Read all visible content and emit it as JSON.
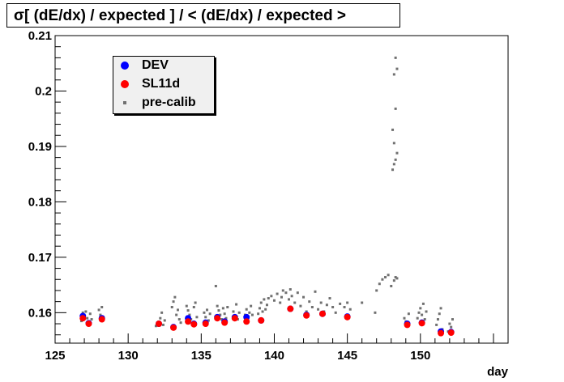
{
  "chart_data": {
    "type": "scatter",
    "title": "σ[ (dE/dx) / expected ] / < (dE/dx) / expected >",
    "xlabel": "day",
    "ylabel": "",
    "xlim": [
      125,
      156
    ],
    "ylim": [
      0.1545,
      0.21
    ],
    "x_ticks": [
      125,
      130,
      135,
      140,
      145,
      150
    ],
    "y_ticks": [
      0.16,
      0.17,
      0.18,
      0.19,
      0.2,
      0.21
    ],
    "x_tick_labels": [
      "125",
      "130",
      "135",
      "140",
      "145",
      "150"
    ],
    "y_tick_labels": [
      "0.16",
      "0.17",
      "0.18",
      "0.19",
      "0.2",
      "0.21"
    ],
    "grid": false,
    "legend_position": "top-left",
    "series": [
      {
        "name": "DEV",
        "color": "#0000ff",
        "marker": "circle",
        "x": [
          126.9,
          127.3,
          128.2,
          132.1,
          133.1,
          134.1,
          134.5,
          135.3,
          136.1,
          136.6,
          137.3,
          138.1,
          139.1,
          141.1,
          142.2,
          143.3,
          145.0,
          149.1,
          150.1,
          151.4,
          152.1
        ],
        "y": [
          0.1594,
          0.1581,
          0.159,
          0.158,
          0.1574,
          0.159,
          0.158,
          0.1582,
          0.1592,
          0.1584,
          0.1592,
          0.1592,
          0.1586,
          0.1607,
          0.1596,
          0.1598,
          0.1593,
          0.158,
          0.1582,
          0.1566,
          0.1565
        ]
      },
      {
        "name": "SL11d",
        "color": "#ff0000",
        "marker": "circle",
        "x": [
          126.9,
          127.3,
          128.2,
          132.1,
          133.1,
          134.1,
          134.5,
          135.3,
          136.1,
          136.6,
          137.3,
          138.1,
          139.1,
          141.1,
          142.2,
          143.3,
          145.0,
          149.1,
          150.1,
          151.4,
          152.1
        ],
        "y": [
          0.159,
          0.158,
          0.1588,
          0.158,
          0.1573,
          0.1584,
          0.1579,
          0.158,
          0.159,
          0.1582,
          0.159,
          0.1584,
          0.1586,
          0.1607,
          0.1595,
          0.1598,
          0.1592,
          0.1578,
          0.1581,
          0.1563,
          0.1564
        ]
      },
      {
        "name": "pre-calib",
        "color": "#707070",
        "marker": "square",
        "x": [
          126.8,
          126.9,
          127.0,
          127.1,
          127.2,
          127.3,
          127.4,
          127.5,
          128.0,
          128.1,
          128.2,
          128.3,
          131.9,
          132.0,
          132.2,
          132.3,
          132.4,
          132.5,
          133.0,
          133.1,
          133.2,
          133.3,
          133.4,
          133.5,
          133.6,
          134.0,
          134.1,
          134.2,
          134.3,
          134.4,
          134.5,
          134.6,
          134.7,
          135.2,
          135.3,
          135.4,
          135.5,
          135.6,
          136.0,
          136.1,
          136.2,
          136.3,
          136.4,
          136.5,
          136.6,
          136.7,
          136.8,
          137.2,
          137.3,
          137.4,
          137.5,
          137.6,
          138.0,
          138.1,
          138.2,
          138.3,
          138.4,
          138.5,
          138.9,
          139.0,
          139.1,
          139.2,
          139.3,
          139.4,
          139.5,
          139.6,
          139.8,
          140.0,
          140.2,
          140.4,
          140.5,
          140.6,
          140.8,
          141.0,
          141.1,
          141.2,
          141.4,
          141.6,
          141.8,
          142.0,
          142.2,
          142.4,
          142.6,
          142.8,
          143.0,
          143.2,
          143.4,
          143.6,
          143.8,
          144.0,
          144.2,
          144.5,
          144.8,
          145.0,
          145.2,
          146.0,
          146.9,
          147.0,
          147.2,
          147.4,
          147.6,
          147.8,
          148.0,
          148.2,
          148.3,
          148.4,
          148.1,
          148.2,
          148.3,
          148.4,
          148.2,
          148.1,
          148.3,
          148.2,
          148.4,
          148.3,
          148.9,
          149.0,
          149.1,
          149.2,
          149.8,
          149.9,
          150.0,
          150.1,
          150.2,
          150.3,
          150.4,
          151.1,
          151.2,
          151.3,
          151.4,
          151.5,
          151.9,
          152.0,
          152.1,
          152.2
        ],
        "y": [
          0.1585,
          0.16,
          0.1596,
          0.1602,
          0.159,
          0.1584,
          0.1598,
          0.1588,
          0.1605,
          0.1596,
          0.161,
          0.1592,
          0.1576,
          0.1582,
          0.159,
          0.16,
          0.1578,
          0.1586,
          0.161,
          0.162,
          0.1628,
          0.1596,
          0.1605,
          0.1588,
          0.1582,
          0.1612,
          0.1604,
          0.1596,
          0.1588,
          0.158,
          0.161,
          0.1618,
          0.1592,
          0.16,
          0.1592,
          0.1605,
          0.1586,
          0.1598,
          0.1648,
          0.1612,
          0.1604,
          0.1596,
          0.1588,
          0.1608,
          0.1598,
          0.159,
          0.161,
          0.1602,
          0.1594,
          0.1615,
          0.1588,
          0.16,
          0.1596,
          0.1606,
          0.1588,
          0.16,
          0.1612,
          0.1596,
          0.1598,
          0.1608,
          0.1618,
          0.1602,
          0.1624,
          0.1606,
          0.1614,
          0.1626,
          0.163,
          0.1622,
          0.1634,
          0.1618,
          0.1628,
          0.164,
          0.1636,
          0.1624,
          0.1642,
          0.163,
          0.1618,
          0.1636,
          0.1612,
          0.1628,
          0.1602,
          0.162,
          0.161,
          0.1638,
          0.1606,
          0.1618,
          0.1602,
          0.1614,
          0.1626,
          0.161,
          0.16,
          0.1616,
          0.161,
          0.1618,
          0.1606,
          0.1618,
          0.16,
          0.164,
          0.1652,
          0.166,
          0.1664,
          0.1668,
          0.1648,
          0.1658,
          0.1664,
          0.1662,
          0.1858,
          0.1868,
          0.1876,
          0.1888,
          0.1906,
          0.193,
          0.1968,
          0.203,
          0.204,
          0.206,
          0.159,
          0.1584,
          0.1578,
          0.1598,
          0.159,
          0.16,
          0.1608,
          0.1596,
          0.1616,
          0.1588,
          0.1602,
          0.1578,
          0.1588,
          0.1598,
          0.1608,
          0.157,
          0.1566,
          0.158,
          0.1574,
          0.1588
        ]
      }
    ]
  },
  "legend": {
    "items": [
      {
        "label": "DEV",
        "color": "#0000ff",
        "symbol": "dot"
      },
      {
        "label": "SL11d",
        "color": "#ff0000",
        "symbol": "dot"
      },
      {
        "label": "pre-calib",
        "color": "#707070",
        "symbol": "small-square"
      }
    ]
  }
}
